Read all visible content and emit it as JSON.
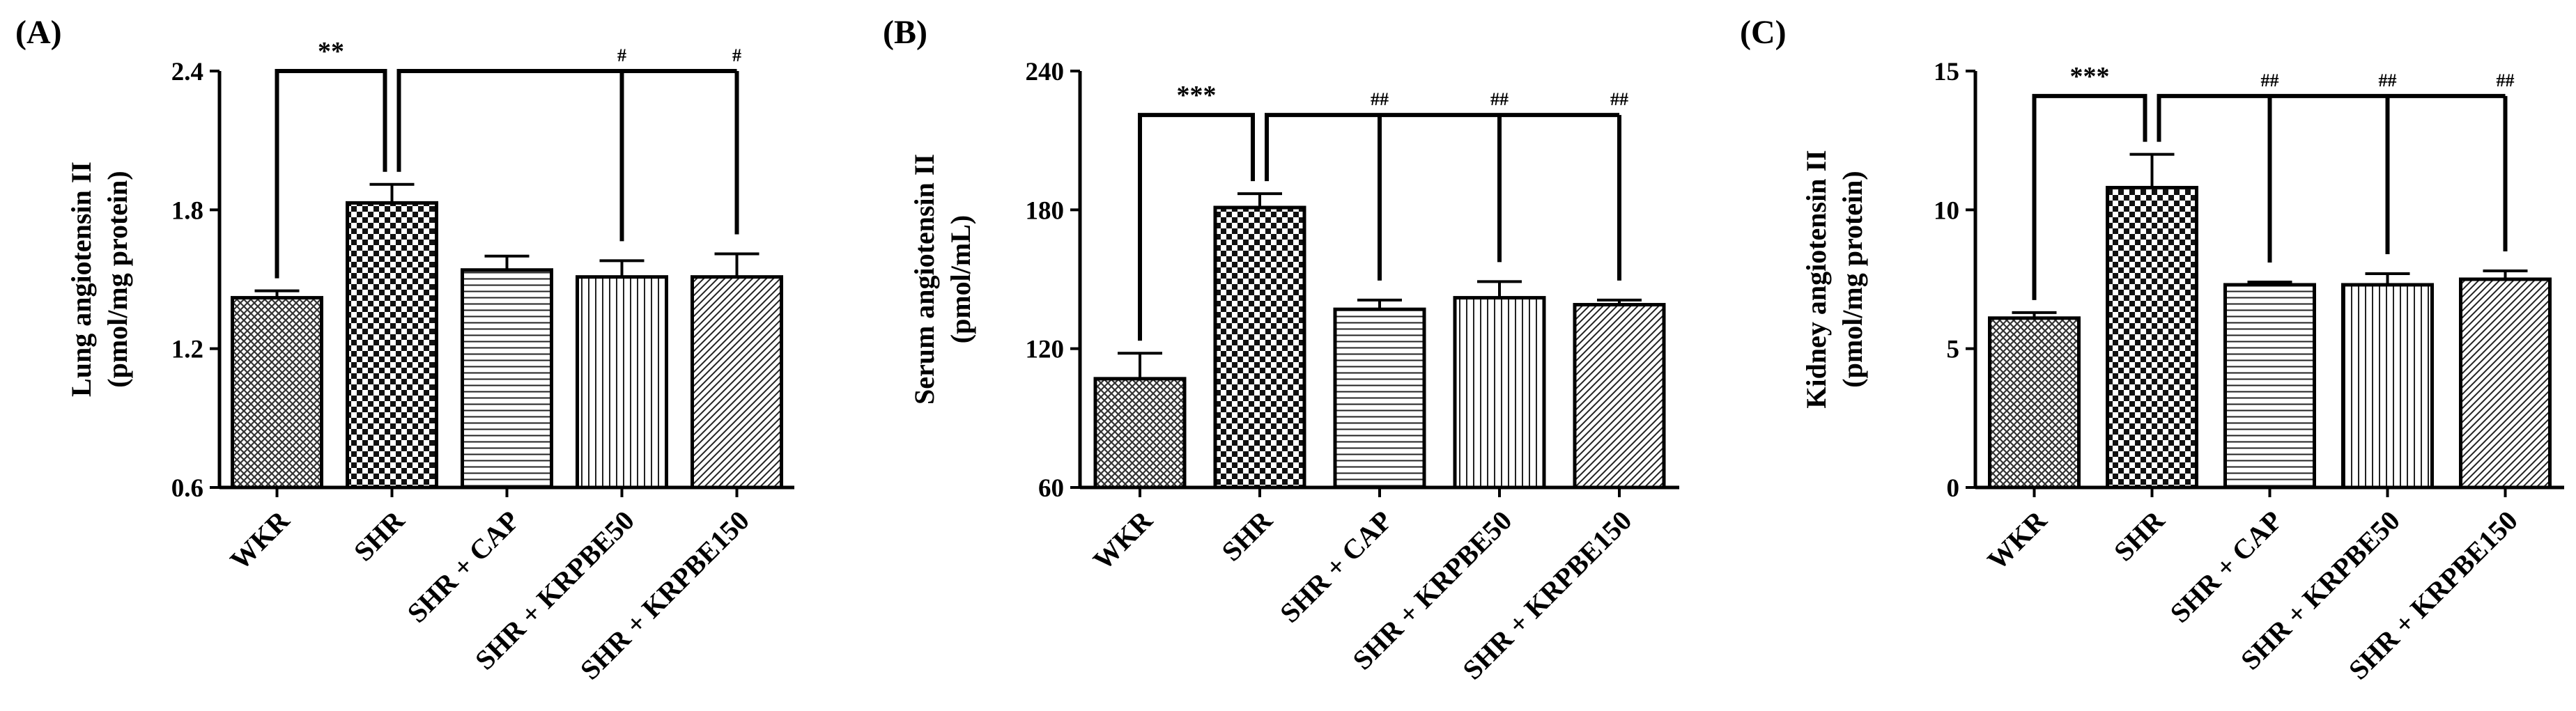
{
  "chart_data": [
    {
      "type": "bar",
      "panel": "(A)",
      "ylabel_line1": "Lung angiotensin II",
      "ylabel_line2": "(pmol/mg protein)",
      "ylim": [
        0.6,
        2.4
      ],
      "yticks": [
        0.6,
        1.2,
        1.8,
        2.4
      ],
      "ytick_labels": [
        "0.6",
        "1.2",
        "1.8",
        "2.4"
      ],
      "categories": [
        "WKR",
        "SHR",
        "SHR + CAP",
        "SHR + KRPBE50",
        "SHR + KRPBE150"
      ],
      "values": [
        1.42,
        1.83,
        1.54,
        1.51,
        1.51
      ],
      "errors": [
        0.03,
        0.08,
        0.06,
        0.07,
        0.1
      ],
      "patterns": [
        "crosshatch",
        "checker",
        "hlines",
        "vlines",
        "diagonal"
      ],
      "significance": [
        {
          "from": 0,
          "to": 1,
          "label": "**",
          "top": 2.4
        },
        {
          "from": 1,
          "to": [
            3,
            4
          ],
          "labels": [
            "#",
            "#"
          ],
          "top": 2.4
        }
      ]
    },
    {
      "type": "bar",
      "panel": "(B)",
      "ylabel_line1": "Serum angiotensin II",
      "ylabel_line2": "(pmol/mL)",
      "ylim": [
        60,
        240
      ],
      "yticks": [
        60,
        120,
        180,
        240
      ],
      "ytick_labels": [
        "60",
        "120",
        "180",
        "240"
      ],
      "categories": [
        "WKR",
        "SHR",
        "SHR + CAP",
        "SHR + KRPBE50",
        "SHR + KRPBE150"
      ],
      "values": [
        107,
        181,
        137,
        142,
        139
      ],
      "errors": [
        11,
        6,
        4,
        7,
        2
      ],
      "patterns": [
        "crosshatch",
        "checker",
        "hlines",
        "vlines",
        "diagonal"
      ],
      "significance": [
        {
          "from": 0,
          "to": 1,
          "label": "***",
          "top": 221
        },
        {
          "from": 1,
          "to": [
            2,
            3,
            4
          ],
          "labels": [
            "##",
            "##",
            "##"
          ],
          "top": 221
        }
      ]
    },
    {
      "type": "bar",
      "panel": "(C)",
      "ylabel_line1": "Kidney angiotensin II",
      "ylabel_line2": "(pmol/mg protein)",
      "ylim": [
        0,
        15
      ],
      "yticks": [
        0,
        5,
        10,
        15
      ],
      "ytick_labels": [
        "0",
        "5",
        "10",
        "15"
      ],
      "categories": [
        "WKR",
        "SHR",
        "SHR + CAP",
        "SHR + KRPBE50",
        "SHR + KRPBE150"
      ],
      "values": [
        6.1,
        10.8,
        7.3,
        7.3,
        7.5
      ],
      "errors": [
        0.2,
        1.2,
        0.1,
        0.4,
        0.3
      ],
      "patterns": [
        "crosshatch",
        "checker",
        "hlines",
        "vlines",
        "diagonal"
      ],
      "significance": [
        {
          "from": 0,
          "to": 1,
          "label": "***",
          "top": 14.1
        },
        {
          "from": 1,
          "to": [
            2,
            3,
            4
          ],
          "labels": [
            "##",
            "##",
            "##"
          ],
          "top": 14.1
        }
      ]
    }
  ]
}
